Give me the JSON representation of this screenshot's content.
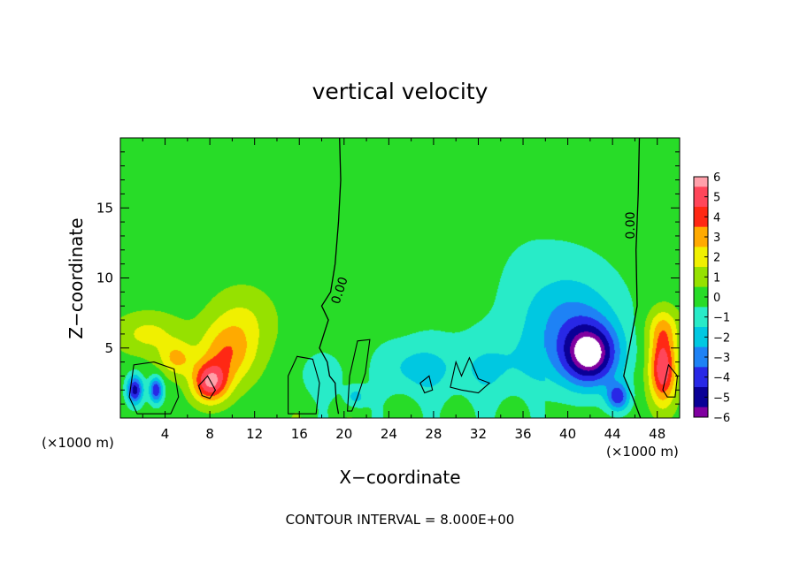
{
  "chart_data": {
    "type": "heatmap",
    "title": "vertical velocity",
    "xlabel": "X−coordinate",
    "ylabel": "Z−coordinate",
    "x_unit_left": "(×1000 m)",
    "x_unit_right": "(×1000 m)",
    "footer": "CONTOUR INTERVAL = 8.000E+00",
    "xlim": [
      0,
      50
    ],
    "ylim": [
      0,
      20
    ],
    "x_ticks": [
      4,
      8,
      12,
      16,
      20,
      24,
      28,
      32,
      36,
      40,
      44,
      48
    ],
    "y_ticks": [
      5,
      10,
      15
    ],
    "contour_labels": [
      "0.00",
      "0.00"
    ],
    "colorbar": {
      "ticks": [
        "6",
        "5",
        "4",
        "3",
        "2",
        "1",
        "0",
        "−1",
        "−2",
        "−3",
        "−4",
        "−5",
        "−6"
      ],
      "range": [
        -6,
        6
      ]
    },
    "features": [
      {
        "x": 8.0,
        "z": 2.5,
        "w": 5,
        "sx": 1.6,
        "sz": 1.4
      },
      {
        "x": 9.5,
        "z": 4.5,
        "w": 3,
        "sx": 2.5,
        "sz": 2.2
      },
      {
        "x": 5.0,
        "z": 4.2,
        "w": 2.5,
        "sx": 1.5,
        "sz": 1.2
      },
      {
        "x": 11.0,
        "z": 7.0,
        "w": 1.5,
        "sx": 3.0,
        "sz": 2.5
      },
      {
        "x": 2.5,
        "z": 6.0,
        "w": 1.8,
        "sx": 3.0,
        "sz": 1.5
      },
      {
        "x": 1.3,
        "z": 2.0,
        "w": -5,
        "sx": 0.7,
        "sz": 1.0
      },
      {
        "x": 3.2,
        "z": 2.0,
        "w": -4.5,
        "sx": 0.6,
        "sz": 0.9
      },
      {
        "x": 42.0,
        "z": 4.5,
        "w": -6,
        "sx": 2.5,
        "sz": 2.2
      },
      {
        "x": 40.0,
        "z": 7.0,
        "w": -2.5,
        "sx": 4.5,
        "sz": 3.5
      },
      {
        "x": 33.0,
        "z": 3.5,
        "w": -1.5,
        "sx": 6.0,
        "sz": 2.5
      },
      {
        "x": 26.0,
        "z": 3.5,
        "w": -1.5,
        "sx": 3.0,
        "sz": 2.0
      },
      {
        "x": 18.0,
        "z": 3.0,
        "w": -1.3,
        "sx": 2.0,
        "sz": 1.5
      },
      {
        "x": 21.0,
        "z": 1.5,
        "w": -2.0,
        "sx": 1.0,
        "sz": 0.8
      },
      {
        "x": 48.5,
        "z": 3.5,
        "w": 5.5,
        "sx": 1.2,
        "sz": 2.5
      },
      {
        "x": 48.5,
        "z": 6.5,
        "w": 2.0,
        "sx": 1.5,
        "sz": 1.5
      },
      {
        "x": 30.0,
        "z": 14.0,
        "w": -0.5,
        "sx": 15.0,
        "sz": 6.0
      },
      {
        "x": 44.5,
        "z": 1.5,
        "w": -4,
        "sx": 1.0,
        "sz": 1.0
      }
    ]
  }
}
